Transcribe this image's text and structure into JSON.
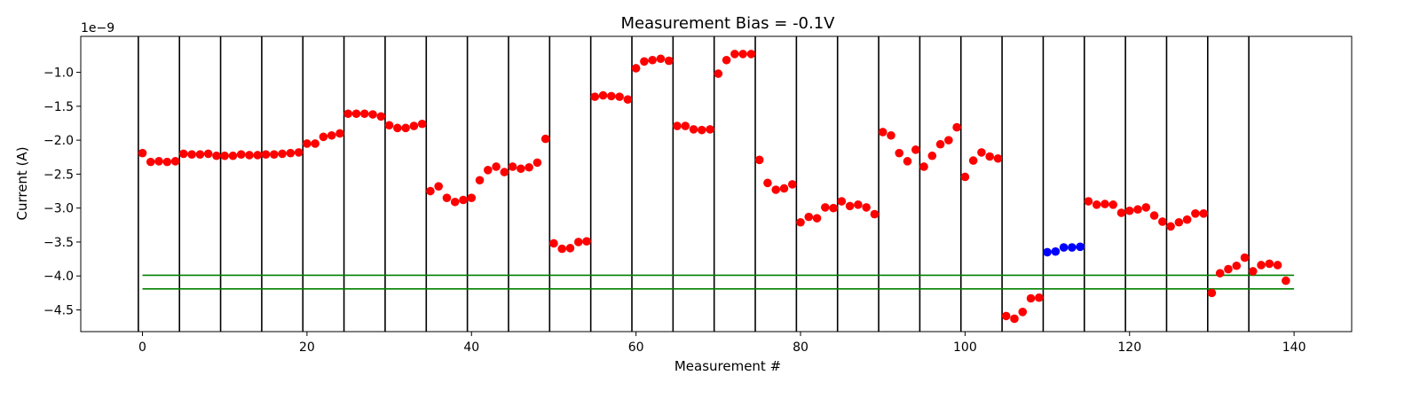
{
  "chart_data": {
    "type": "scatter",
    "title": "Measurement Bias = -0.1V",
    "xlabel": "Measurement #",
    "ylabel": "Current (A)",
    "y_offset_text": "1e−9",
    "xlim": [
      -7.5,
      147
    ],
    "ylim": [
      -4.82,
      -0.47
    ],
    "x_ticks": [
      0,
      20,
      40,
      60,
      80,
      100,
      120,
      140
    ],
    "x_tick_labels": [
      "0",
      "20",
      "40",
      "60",
      "80",
      "100",
      "120",
      "140"
    ],
    "y_ticks": [
      -1.0,
      -1.5,
      -2.0,
      -2.5,
      -3.0,
      -3.5,
      -4.0,
      -4.5
    ],
    "y_tick_labels": [
      "−1.0",
      "−1.5",
      "−2.0",
      "−2.5",
      "−3.0",
      "−3.5",
      "−4.0",
      "−4.5"
    ],
    "grid": false,
    "group_separators_x": [
      -0.5,
      4.5,
      9.5,
      14.5,
      19.5,
      24.5,
      29.5,
      34.5,
      39.5,
      44.5,
      49.5,
      54.5,
      59.5,
      64.5,
      69.5,
      74.5,
      79.5,
      84.5,
      89.5,
      94.5,
      99.5,
      104.5,
      109.5,
      114.5,
      119.5,
      124.5,
      129.5,
      134.5
    ],
    "reference_lines": [
      {
        "y": -3.99,
        "x_range": [
          0,
          140
        ],
        "color": "#008000"
      },
      {
        "y": -4.19,
        "x_range": [
          0,
          140
        ],
        "color": "#008000"
      }
    ],
    "series": [
      {
        "color": "#ff0000",
        "x": [
          0,
          1,
          2,
          3,
          4,
          5,
          6,
          7,
          8,
          9,
          10,
          11,
          12,
          13,
          14,
          15,
          16,
          17,
          18,
          19,
          20,
          21,
          22,
          23,
          24,
          25,
          26,
          27,
          28,
          29,
          30,
          31,
          32,
          33,
          34,
          35,
          36,
          37,
          38,
          39,
          40,
          41,
          42,
          43,
          44,
          45,
          46,
          47,
          48,
          49,
          50,
          51,
          52,
          53,
          54,
          55,
          56,
          57,
          58,
          59,
          60,
          61,
          62,
          63,
          64,
          65,
          66,
          67,
          68,
          69,
          70,
          71,
          72,
          73,
          74,
          75,
          76,
          77,
          78,
          79,
          80,
          81,
          82,
          83,
          84,
          85,
          86,
          87,
          88,
          89,
          90,
          91,
          92,
          93,
          94,
          95,
          96,
          97,
          98,
          99,
          100,
          101,
          102,
          103,
          104,
          105,
          106,
          107,
          108,
          109,
          115,
          116,
          117,
          118,
          119,
          120,
          121,
          122,
          123,
          124,
          125,
          126,
          127,
          128,
          129,
          130,
          131,
          132,
          133,
          134,
          135,
          136,
          137,
          138,
          139
        ],
        "y": [
          -2.19,
          -2.32,
          -2.31,
          -2.32,
          -2.31,
          -2.2,
          -2.21,
          -2.21,
          -2.2,
          -2.23,
          -2.23,
          -2.23,
          -2.21,
          -2.22,
          -2.22,
          -2.21,
          -2.21,
          -2.2,
          -2.19,
          -2.18,
          -2.05,
          -2.05,
          -1.95,
          -1.93,
          -1.9,
          -1.61,
          -1.61,
          -1.61,
          -1.62,
          -1.65,
          -1.78,
          -1.82,
          -1.82,
          -1.79,
          -1.76,
          -2.75,
          -2.68,
          -2.85,
          -2.91,
          -2.88,
          -2.85,
          -2.59,
          -2.44,
          -2.39,
          -2.47,
          -2.39,
          -2.42,
          -2.4,
          -2.33,
          -1.98,
          -3.52,
          -3.6,
          -3.59,
          -3.5,
          -3.49,
          -1.36,
          -1.34,
          -1.35,
          -1.36,
          -1.4,
          -0.94,
          -0.84,
          -0.82,
          -0.8,
          -0.83,
          -1.79,
          -1.79,
          -1.84,
          -1.85,
          -1.84,
          -1.02,
          -0.82,
          -0.73,
          -0.73,
          -0.73,
          -2.29,
          -2.63,
          -2.73,
          -2.71,
          -2.65,
          -3.21,
          -3.13,
          -3.15,
          -2.99,
          -3.0,
          -2.9,
          -2.97,
          -2.95,
          -2.99,
          -3.09,
          -1.88,
          -1.93,
          -2.19,
          -2.31,
          -2.14,
          -2.39,
          -2.23,
          -2.06,
          -2.0,
          -1.81,
          -2.54,
          -2.3,
          -2.18,
          -2.24,
          -2.27,
          -4.59,
          -4.63,
          -4.53,
          -4.33,
          -4.32,
          -2.9,
          -2.95,
          -2.94,
          -2.95,
          -3.07,
          -3.04,
          -3.02,
          -2.99,
          -3.11,
          -3.2,
          -3.27,
          -3.21,
          -3.17,
          -3.08,
          -3.08,
          -4.25,
          -3.96,
          -3.9,
          -3.85,
          -3.73,
          -3.93,
          -3.84,
          -3.82,
          -3.84,
          -4.07
        ]
      },
      {
        "color": "#0000ff",
        "x": [
          110,
          111,
          112,
          113,
          114
        ],
        "y": [
          -3.65,
          -3.64,
          -3.58,
          -3.58,
          -3.57
        ]
      }
    ]
  }
}
